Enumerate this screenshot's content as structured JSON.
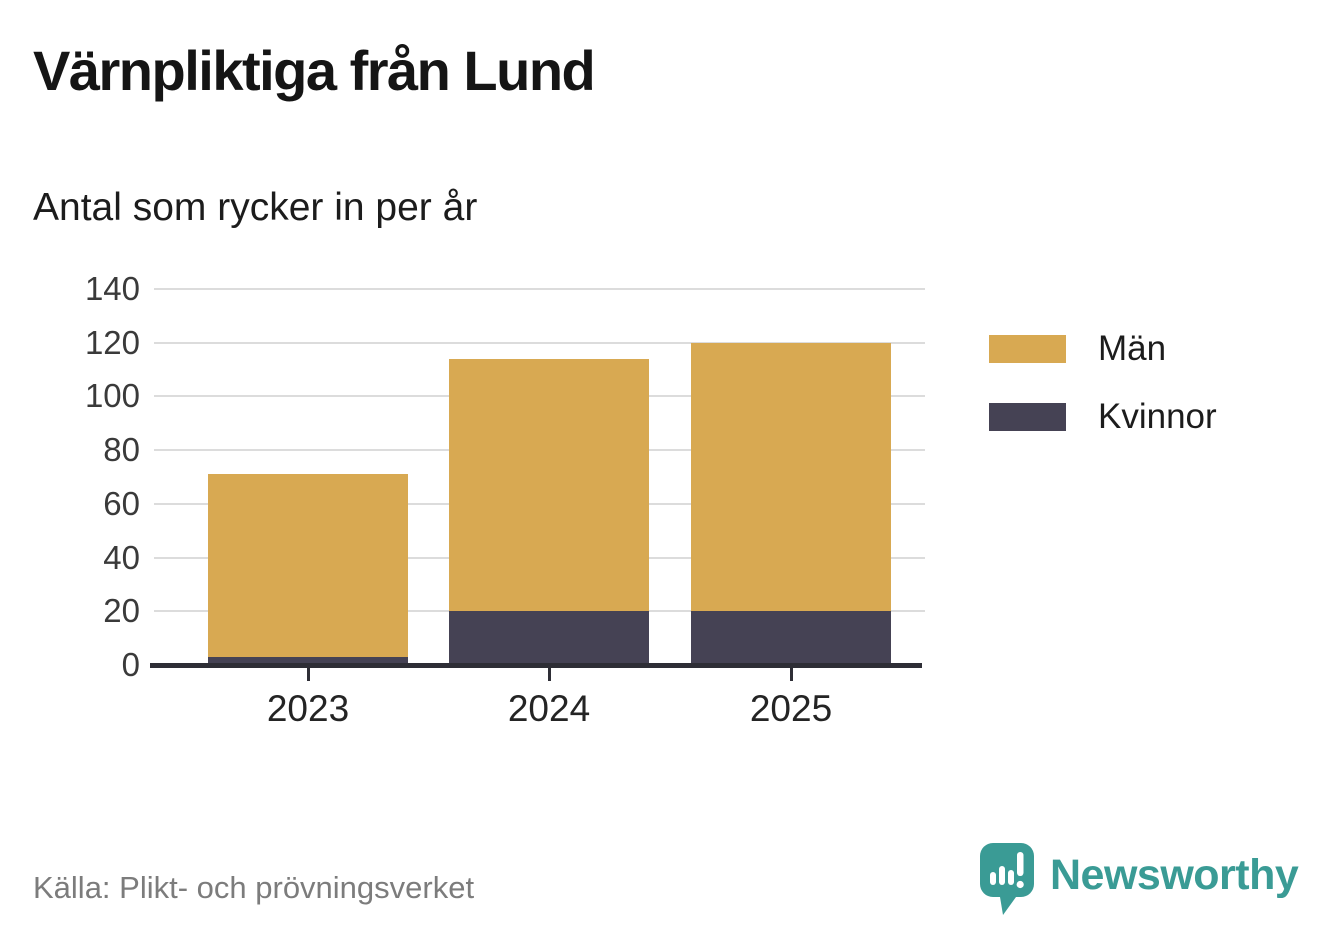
{
  "header": {
    "title": "Värnpliktiga från Lund",
    "subtitle": "Antal som rycker in per år"
  },
  "legend": {
    "items": [
      {
        "label": "Män",
        "color": "#d8a952"
      },
      {
        "label": "Kvinnor",
        "color": "#454254"
      }
    ]
  },
  "footer": {
    "source": "Källa: Plikt- och prövningsverket",
    "brand": "Newsworthy"
  },
  "colors": {
    "men": "#d8a952",
    "women": "#454254",
    "axis": "#2e2e36",
    "gridline": "#dcdcdc",
    "brand_teal": "#3a9b95"
  },
  "chart_data": {
    "type": "bar",
    "stacked": true,
    "title": "Värnpliktiga från Lund",
    "subtitle": "Antal som rycker in per år",
    "categories": [
      "2023",
      "2024",
      "2025"
    ],
    "series": [
      {
        "name": "Kvinnor",
        "color": "#454254",
        "values": [
          3,
          20,
          20
        ]
      },
      {
        "name": "Män",
        "color": "#d8a952",
        "values": [
          68,
          94,
          100
        ]
      }
    ],
    "stack_order": "bottom_to_top",
    "totals": [
      71,
      114,
      120
    ],
    "xlabel": "",
    "ylabel": "",
    "ylim": [
      0,
      140
    ],
    "yticks": [
      0,
      20,
      40,
      60,
      80,
      100,
      120,
      140
    ],
    "grid": "horizontal",
    "legend_position": "right",
    "source": "Källa: Plikt- och prövningsverket"
  }
}
